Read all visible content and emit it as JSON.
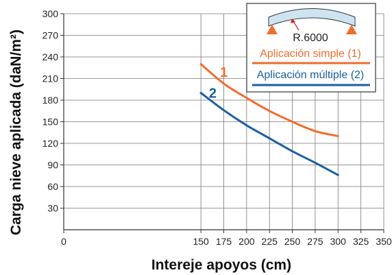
{
  "chart_data": {
    "type": "line",
    "title": "",
    "xlabel": "Intereje apoyos (cm)",
    "ylabel": "Carga nieve aplicada  (daN/m²)",
    "xlim": [
      0,
      350
    ],
    "ylim": [
      0,
      300
    ],
    "x_ticks": [
      0,
      150,
      175,
      200,
      225,
      250,
      275,
      300,
      325,
      350
    ],
    "y_ticks": [
      30,
      60,
      90,
      120,
      150,
      180,
      210,
      240,
      270,
      300
    ],
    "grid": true,
    "legend_position": "top-right",
    "series": [
      {
        "name": "Aplicación simple (1)",
        "curve_label": "1",
        "color": "#f26b2b",
        "x": [
          150,
          175,
          200,
          225,
          250,
          275,
          300
        ],
        "values": [
          230,
          203,
          183,
          165,
          150,
          137,
          130
        ]
      },
      {
        "name": "Aplicación múltiple (2)",
        "curve_label": "2",
        "color": "#1a5fa0",
        "x": [
          150,
          175,
          200,
          225,
          250,
          275,
          300
        ],
        "values": [
          190,
          166,
          145,
          127,
          109,
          93,
          76
        ]
      }
    ],
    "annotation": {
      "text": "R.6000",
      "icon": "curved-panel-on-supports-icon",
      "panel_color": "#cfe4f3",
      "support_color": "#f26b2b"
    }
  }
}
